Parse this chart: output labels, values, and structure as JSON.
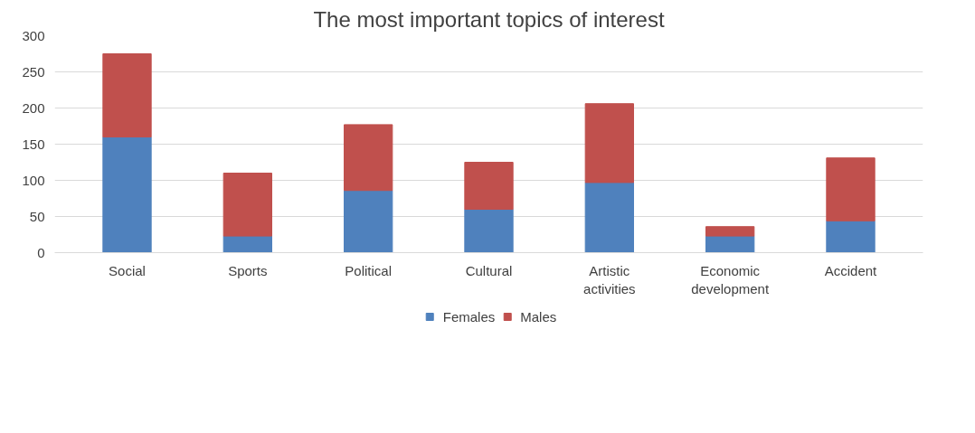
{
  "chart_data": {
    "type": "bar",
    "title": "The most important topics of interest",
    "categories": [
      "Social",
      "Sports",
      "Political",
      "Cultural",
      "Artistic activities",
      "Economic development",
      "Accident"
    ],
    "stacked": true,
    "series": [
      {
        "name": "Females",
        "color": "#4f81bd",
        "values": [
          160,
          23,
          86,
          60,
          97,
          23,
          44
        ]
      },
      {
        "name": "Males",
        "color": "#c0504d",
        "values": [
          115,
          87,
          91,
          65,
          109,
          13,
          87
        ]
      }
    ],
    "ylim": [
      0,
      300
    ],
    "yticks": [
      0,
      50,
      100,
      150,
      200,
      250,
      300
    ],
    "grid": "y",
    "legend": "bottom"
  }
}
